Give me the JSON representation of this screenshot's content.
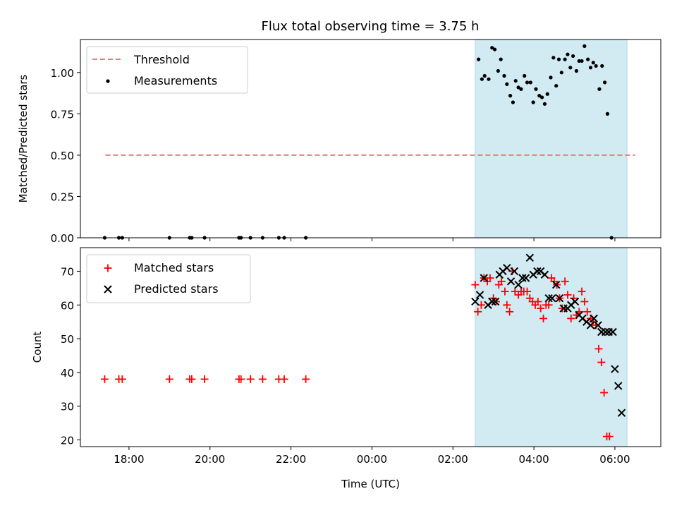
{
  "title": "Flux total observing time = 3.75 h",
  "colors": {
    "threshold": "#f07878",
    "matched": "#ff0000",
    "predicted": "#000000",
    "shade": "#add8e6"
  },
  "chart_data": [
    {
      "type": "scatter",
      "panel": "top",
      "ylabel": "Matched/Predicted stars",
      "ylim": [
        0,
        1.2
      ],
      "yticks": [
        0,
        0.25,
        0.5,
        0.75,
        1.0
      ],
      "ytick_labels": [
        "0.00",
        "0.25",
        "0.50",
        "0.75",
        "1.00"
      ],
      "shaded_interval": [
        "02:33",
        "06:18"
      ],
      "legend": {
        "position": "top-left",
        "entries": [
          "Threshold",
          "Measurements"
        ]
      },
      "threshold": {
        "name": "Threshold",
        "x_range": [
          "17:25",
          "06:30"
        ],
        "y": 0.5
      },
      "series": [
        {
          "name": "Measurements",
          "points": [
            [
              "17:24",
              0
            ],
            [
              "17:45",
              0
            ],
            [
              "17:50",
              0
            ],
            [
              "19:00",
              0
            ],
            [
              "19:30",
              0
            ],
            [
              "19:33",
              0
            ],
            [
              "19:52",
              0
            ],
            [
              "20:43",
              0
            ],
            [
              "20:46",
              0
            ],
            [
              "21:00",
              0
            ],
            [
              "21:18",
              0
            ],
            [
              "21:42",
              0
            ],
            [
              "21:50",
              0
            ],
            [
              "22:22",
              0
            ],
            [
              "02:38",
              1.08
            ],
            [
              "02:43",
              0.96
            ],
            [
              "02:47",
              0.98
            ],
            [
              "02:53",
              0.96
            ],
            [
              "02:58",
              1.15
            ],
            [
              "03:02",
              1.14
            ],
            [
              "03:07",
              1.01
            ],
            [
              "03:11",
              1.08
            ],
            [
              "03:16",
              0.98
            ],
            [
              "03:20",
              0.93
            ],
            [
              "03:25",
              0.86
            ],
            [
              "03:29",
              0.82
            ],
            [
              "03:33",
              0.95
            ],
            [
              "03:37",
              0.91
            ],
            [
              "03:41",
              0.9
            ],
            [
              "03:46",
              0.98
            ],
            [
              "03:50",
              0.94
            ],
            [
              "03:55",
              0.94
            ],
            [
              "03:59",
              0.82
            ],
            [
              "04:03",
              0.9
            ],
            [
              "04:08",
              0.86
            ],
            [
              "04:12",
              0.85
            ],
            [
              "04:16",
              0.81
            ],
            [
              "04:20",
              0.87
            ],
            [
              "04:25",
              0.97
            ],
            [
              "04:29",
              1.09
            ],
            [
              "04:33",
              0.92
            ],
            [
              "04:37",
              1.08
            ],
            [
              "04:41",
              1.0
            ],
            [
              "04:46",
              1.08
            ],
            [
              "04:50",
              1.11
            ],
            [
              "04:54",
              1.03
            ],
            [
              "04:58",
              1.1
            ],
            [
              "05:03",
              1.01
            ],
            [
              "05:07",
              1.07
            ],
            [
              "05:11",
              1.07
            ],
            [
              "05:15",
              1.16
            ],
            [
              "05:20",
              1.08
            ],
            [
              "05:24",
              1.03
            ],
            [
              "05:28",
              1.06
            ],
            [
              "05:32",
              1.04
            ],
            [
              "05:37",
              0.9
            ],
            [
              "05:41",
              1.04
            ],
            [
              "05:45",
              0.94
            ],
            [
              "05:49",
              0.75
            ],
            [
              "05:55",
              0.0
            ]
          ]
        }
      ]
    },
    {
      "type": "scatter",
      "panel": "bottom",
      "ylabel": "Count",
      "xlabel": "Time (UTC)",
      "ylim": [
        18,
        77
      ],
      "yticks": [
        20,
        30,
        40,
        50,
        60,
        70
      ],
      "xlim": [
        "16:48",
        "07:08"
      ],
      "xticks": [
        "18:00",
        "20:00",
        "22:00",
        "00:00",
        "02:00",
        "04:00",
        "06:00"
      ],
      "shaded_interval": [
        "02:33",
        "06:18"
      ],
      "legend": {
        "position": "top-left",
        "entries": [
          "Matched stars",
          "Predicted stars"
        ]
      },
      "series": [
        {
          "name": "Matched stars",
          "marker": "+",
          "points": [
            [
              "17:24",
              38
            ],
            [
              "17:45",
              38
            ],
            [
              "17:50",
              38
            ],
            [
              "19:00",
              38
            ],
            [
              "19:30",
              38
            ],
            [
              "19:33",
              38
            ],
            [
              "19:52",
              38
            ],
            [
              "20:43",
              38
            ],
            [
              "20:46",
              38
            ],
            [
              "21:00",
              38
            ],
            [
              "21:18",
              38
            ],
            [
              "21:42",
              38
            ],
            [
              "21:50",
              38
            ],
            [
              "22:22",
              38
            ],
            [
              "02:33",
              66
            ],
            [
              "02:37",
              58
            ],
            [
              "02:42",
              60
            ],
            [
              "02:46",
              68
            ],
            [
              "02:51",
              67
            ],
            [
              "02:55",
              68
            ],
            [
              "03:00",
              62
            ],
            [
              "03:04",
              61
            ],
            [
              "03:08",
              66
            ],
            [
              "03:12",
              67
            ],
            [
              "03:17",
              64
            ],
            [
              "03:20",
              60
            ],
            [
              "03:24",
              58
            ],
            [
              "03:28",
              70
            ],
            [
              "03:32",
              64
            ],
            [
              "03:37",
              63
            ],
            [
              "03:41",
              64
            ],
            [
              "03:45",
              64
            ],
            [
              "03:50",
              64
            ],
            [
              "03:54",
              62
            ],
            [
              "03:58",
              61
            ],
            [
              "04:02",
              60
            ],
            [
              "04:06",
              61
            ],
            [
              "04:10",
              59
            ],
            [
              "04:14",
              56
            ],
            [
              "04:18",
              60
            ],
            [
              "04:22",
              60
            ],
            [
              "04:26",
              68
            ],
            [
              "04:30",
              67
            ],
            [
              "04:34",
              66
            ],
            [
              "04:38",
              62
            ],
            [
              "04:42",
              59
            ],
            [
              "04:46",
              67
            ],
            [
              "04:50",
              63
            ],
            [
              "04:55",
              56
            ],
            [
              "04:59",
              62
            ],
            [
              "05:03",
              57
            ],
            [
              "05:07",
              58
            ],
            [
              "05:11",
              64
            ],
            [
              "05:15",
              61
            ],
            [
              "05:19",
              58
            ],
            [
              "05:24",
              56
            ],
            [
              "05:28",
              55
            ],
            [
              "05:32",
              54
            ],
            [
              "05:36",
              47
            ],
            [
              "05:40",
              43
            ],
            [
              "05:44",
              34
            ],
            [
              "05:48",
              21
            ],
            [
              "05:52",
              21
            ]
          ]
        },
        {
          "name": "Predicted stars",
          "marker": "x",
          "points": [
            [
              "02:33",
              61
            ],
            [
              "02:40",
              63
            ],
            [
              "02:46",
              68
            ],
            [
              "02:52",
              60
            ],
            [
              "02:58",
              61
            ],
            [
              "03:03",
              61
            ],
            [
              "03:09",
              69
            ],
            [
              "03:14",
              70
            ],
            [
              "03:20",
              71
            ],
            [
              "03:26",
              67
            ],
            [
              "03:31",
              70
            ],
            [
              "03:37",
              66
            ],
            [
              "03:43",
              68
            ],
            [
              "03:48",
              68
            ],
            [
              "03:54",
              74
            ],
            [
              "03:59",
              69
            ],
            [
              "04:05",
              70
            ],
            [
              "04:10",
              70
            ],
            [
              "04:16",
              69
            ],
            [
              "04:22",
              62
            ],
            [
              "04:27",
              62
            ],
            [
              "04:33",
              66
            ],
            [
              "04:38",
              62
            ],
            [
              "04:44",
              59
            ],
            [
              "04:50",
              59
            ],
            [
              "04:55",
              60
            ],
            [
              "05:01",
              61
            ],
            [
              "05:07",
              57
            ],
            [
              "05:12",
              56
            ],
            [
              "05:18",
              55
            ],
            [
              "05:24",
              54
            ],
            [
              "05:29",
              56
            ],
            [
              "05:35",
              54
            ],
            [
              "05:40",
              52
            ],
            [
              "05:46",
              52
            ],
            [
              "05:51",
              52
            ],
            [
              "05:57",
              52
            ],
            [
              "06:00",
              41
            ],
            [
              "06:05",
              36
            ],
            [
              "06:10",
              28
            ]
          ]
        }
      ]
    }
  ]
}
